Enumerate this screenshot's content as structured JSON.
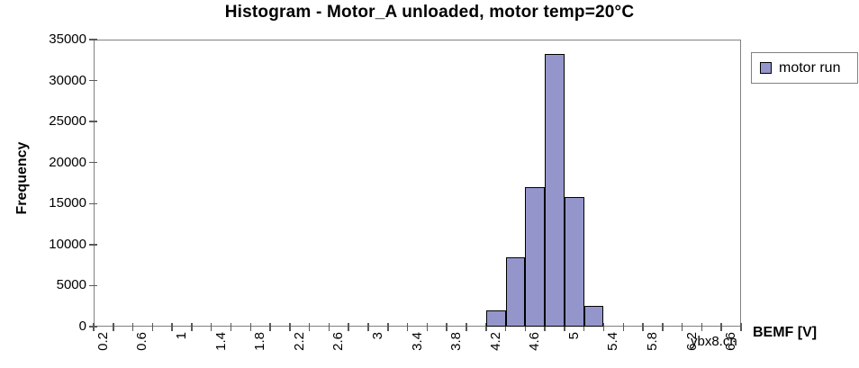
{
  "watermark": "ybx8.cn",
  "colors": {
    "bar_fill": "#9496CB",
    "bar_border": "#000000",
    "axis_line": "#808080",
    "tick_mark": "#595959",
    "text": "#000000",
    "background": "#FFFFFF"
  },
  "legend": {
    "position": "right",
    "items": [
      {
        "label": "motor run",
        "swatch_color": "#9496CB"
      }
    ]
  },
  "chart_data": {
    "type": "bar",
    "title": "Histogram - Motor_A unloaded, motor temp=20°C",
    "xlabel": "BEMF [V]",
    "ylabel": "Frequency",
    "ylim": [
      0,
      35000
    ],
    "yticks": [
      0,
      5000,
      10000,
      15000,
      20000,
      25000,
      30000,
      35000
    ],
    "grid": false,
    "legend_position": "right",
    "bin_width": 0.2,
    "categories": [
      "0.2",
      "0.4",
      "0.6",
      "0.8",
      "1",
      "1.2",
      "1.4",
      "1.6",
      "1.8",
      "2",
      "2.2",
      "2.4",
      "2.6",
      "2.8",
      "3",
      "3.2",
      "3.4",
      "3.6",
      "3.8",
      "4",
      "4.2",
      "4.4",
      "4.6",
      "4.8",
      "5",
      "5.2",
      "5.4",
      "5.6",
      "5.8",
      "6",
      "6.2",
      "6.4",
      "6.6"
    ],
    "xtick_label_every": 2,
    "series": [
      {
        "name": "motor run",
        "color": "#9496CB",
        "values": [
          0,
          0,
          0,
          0,
          0,
          0,
          0,
          0,
          0,
          0,
          0,
          0,
          0,
          0,
          0,
          0,
          0,
          0,
          0,
          0,
          2000,
          8500,
          17000,
          33200,
          15800,
          2500,
          0,
          0,
          0,
          0,
          0,
          0,
          0
        ]
      }
    ]
  }
}
